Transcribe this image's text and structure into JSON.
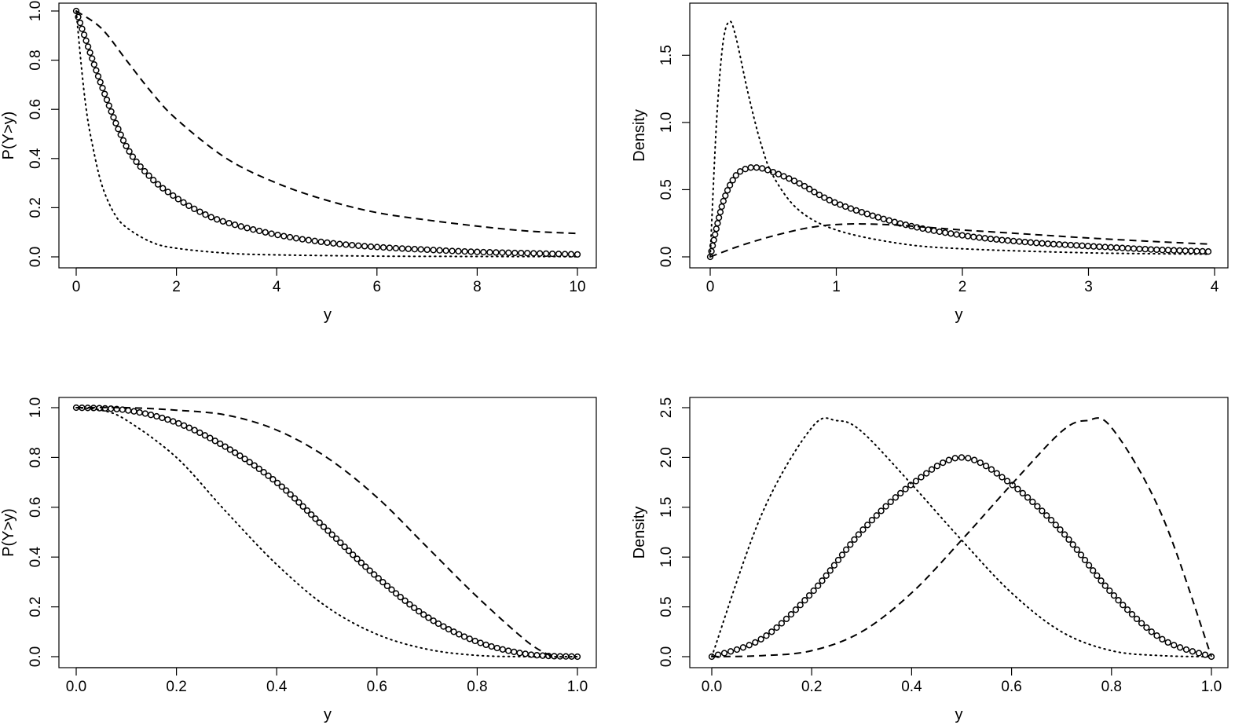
{
  "chart_data": [
    {
      "type": "line",
      "panel": "top-left",
      "xlabel": "y",
      "ylabel": "P(Y>y)",
      "xlim": [
        0,
        10
      ],
      "ylim": [
        0,
        1
      ],
      "xticks": [
        "0",
        "2",
        "4",
        "6",
        "8",
        "10"
      ],
      "yticks": [
        "0.0",
        "0.2",
        "0.4",
        "0.6",
        "0.8",
        "1.0"
      ],
      "grid": false,
      "series": [
        {
          "style": "circles",
          "x": [
            0,
            0.5,
            1,
            1.5,
            2,
            2.5,
            3,
            4,
            5,
            6,
            7,
            8,
            9,
            10
          ],
          "y": [
            1.0,
            0.7,
            0.45,
            0.32,
            0.24,
            0.18,
            0.14,
            0.09,
            0.058,
            0.04,
            0.029,
            0.02,
            0.015,
            0.01
          ]
        },
        {
          "style": "dashed",
          "x": [
            0,
            0.5,
            1,
            1.5,
            2,
            3,
            4,
            5,
            6,
            7,
            8,
            9,
            10
          ],
          "y": [
            1.0,
            0.93,
            0.8,
            0.67,
            0.56,
            0.4,
            0.3,
            0.23,
            0.18,
            0.15,
            0.125,
            0.105,
            0.095
          ]
        },
        {
          "style": "dotted",
          "x": [
            0,
            0.1,
            0.2,
            0.3,
            0.5,
            0.75,
            1,
            1.5,
            2,
            3,
            4,
            6,
            8,
            10
          ],
          "y": [
            1.0,
            0.78,
            0.6,
            0.48,
            0.3,
            0.18,
            0.12,
            0.06,
            0.035,
            0.015,
            0.008,
            0.003,
            0.0015,
            0.001
          ]
        }
      ]
    },
    {
      "type": "line",
      "panel": "top-right",
      "xlabel": "y",
      "ylabel": "Density",
      "xlim": [
        0,
        4
      ],
      "ylim": [
        0,
        1.8
      ],
      "xticks": [
        "0",
        "1",
        "2",
        "3",
        "4"
      ],
      "yticks": [
        "0.0",
        "0.5",
        "1.0",
        "1.5"
      ],
      "grid": false,
      "series": [
        {
          "style": "circles",
          "x": [
            0,
            0.1,
            0.2,
            0.3,
            0.4,
            0.5,
            0.7,
            1.0,
            1.5,
            2.0,
            2.5,
            3.0,
            3.5,
            3.95
          ],
          "y": [
            0,
            0.4,
            0.6,
            0.66,
            0.66,
            0.63,
            0.55,
            0.4,
            0.25,
            0.16,
            0.11,
            0.08,
            0.055,
            0.04
          ]
        },
        {
          "style": "dashed",
          "x": [
            0,
            0.2,
            0.4,
            0.6,
            0.8,
            1.0,
            1.2,
            1.5,
            2,
            2.5,
            3,
            3.5,
            3.95
          ],
          "y": [
            0,
            0.07,
            0.13,
            0.18,
            0.22,
            0.24,
            0.245,
            0.235,
            0.2,
            0.17,
            0.14,
            0.115,
            0.095
          ]
        },
        {
          "style": "dotted",
          "x": [
            0,
            0.05,
            0.1,
            0.15,
            0.2,
            0.3,
            0.4,
            0.5,
            0.7,
            1.0,
            1.5,
            2,
            3,
            3.95
          ],
          "y": [
            0,
            1.0,
            1.58,
            1.75,
            1.65,
            1.22,
            0.85,
            0.6,
            0.35,
            0.2,
            0.1,
            0.06,
            0.03,
            0.02
          ]
        }
      ]
    },
    {
      "type": "line",
      "panel": "bottom-left",
      "xlabel": "y",
      "ylabel": "P(Y>y)",
      "xlim": [
        0,
        1
      ],
      "ylim": [
        0,
        1
      ],
      "xticks": [
        "0.0",
        "0.2",
        "0.4",
        "0.6",
        "0.8",
        "1.0"
      ],
      "yticks": [
        "0.0",
        "0.2",
        "0.4",
        "0.6",
        "0.8",
        "1.0"
      ],
      "grid": false,
      "series": [
        {
          "style": "circles",
          "x": [
            0,
            0.1,
            0.2,
            0.3,
            0.4,
            0.5,
            0.6,
            0.7,
            0.8,
            0.9,
            1.0
          ],
          "y": [
            1.0,
            0.99,
            0.94,
            0.84,
            0.7,
            0.51,
            0.32,
            0.16,
            0.06,
            0.01,
            0.0
          ]
        },
        {
          "style": "dashed",
          "x": [
            0,
            0.1,
            0.2,
            0.3,
            0.4,
            0.5,
            0.6,
            0.7,
            0.8,
            0.9,
            0.95
          ],
          "y": [
            1.0,
            1.0,
            0.99,
            0.97,
            0.91,
            0.8,
            0.64,
            0.44,
            0.24,
            0.06,
            0.0
          ]
        },
        {
          "style": "dotted",
          "x": [
            0,
            0.05,
            0.1,
            0.2,
            0.3,
            0.4,
            0.5,
            0.6,
            0.7,
            0.8,
            0.9,
            1.0
          ],
          "y": [
            1.0,
            0.99,
            0.95,
            0.8,
            0.58,
            0.37,
            0.2,
            0.09,
            0.03,
            0.005,
            0.0,
            0.0
          ]
        }
      ]
    },
    {
      "type": "line",
      "panel": "bottom-right",
      "xlabel": "y",
      "ylabel": "Density",
      "xlim": [
        0,
        1
      ],
      "ylim": [
        0,
        2.5
      ],
      "xticks": [
        "0.0",
        "0.2",
        "0.4",
        "0.6",
        "0.8",
        "1.0"
      ],
      "yticks": [
        "0.0",
        "0.5",
        "1.0",
        "1.5",
        "2.0",
        "2.5"
      ],
      "grid": false,
      "series": [
        {
          "style": "circles",
          "x": [
            0,
            0.1,
            0.2,
            0.3,
            0.4,
            0.5,
            0.6,
            0.7,
            0.8,
            0.9,
            1.0
          ],
          "y": [
            0,
            0.18,
            0.64,
            1.26,
            1.73,
            2.0,
            1.73,
            1.26,
            0.64,
            0.18,
            0
          ]
        },
        {
          "style": "dashed",
          "x": [
            0,
            0.1,
            0.2,
            0.3,
            0.4,
            0.5,
            0.6,
            0.7,
            0.75,
            0.8,
            0.9,
            1.0
          ],
          "y": [
            0,
            0.01,
            0.06,
            0.25,
            0.64,
            1.17,
            1.73,
            2.26,
            2.37,
            2.3,
            1.43,
            0
          ]
        },
        {
          "style": "dotted",
          "x": [
            0,
            0.1,
            0.2,
            0.25,
            0.3,
            0.4,
            0.5,
            0.6,
            0.7,
            0.8,
            0.9,
            1.0
          ],
          "y": [
            0,
            1.43,
            2.3,
            2.37,
            2.26,
            1.73,
            1.17,
            0.64,
            0.25,
            0.06,
            0.01,
            0
          ]
        }
      ]
    }
  ]
}
